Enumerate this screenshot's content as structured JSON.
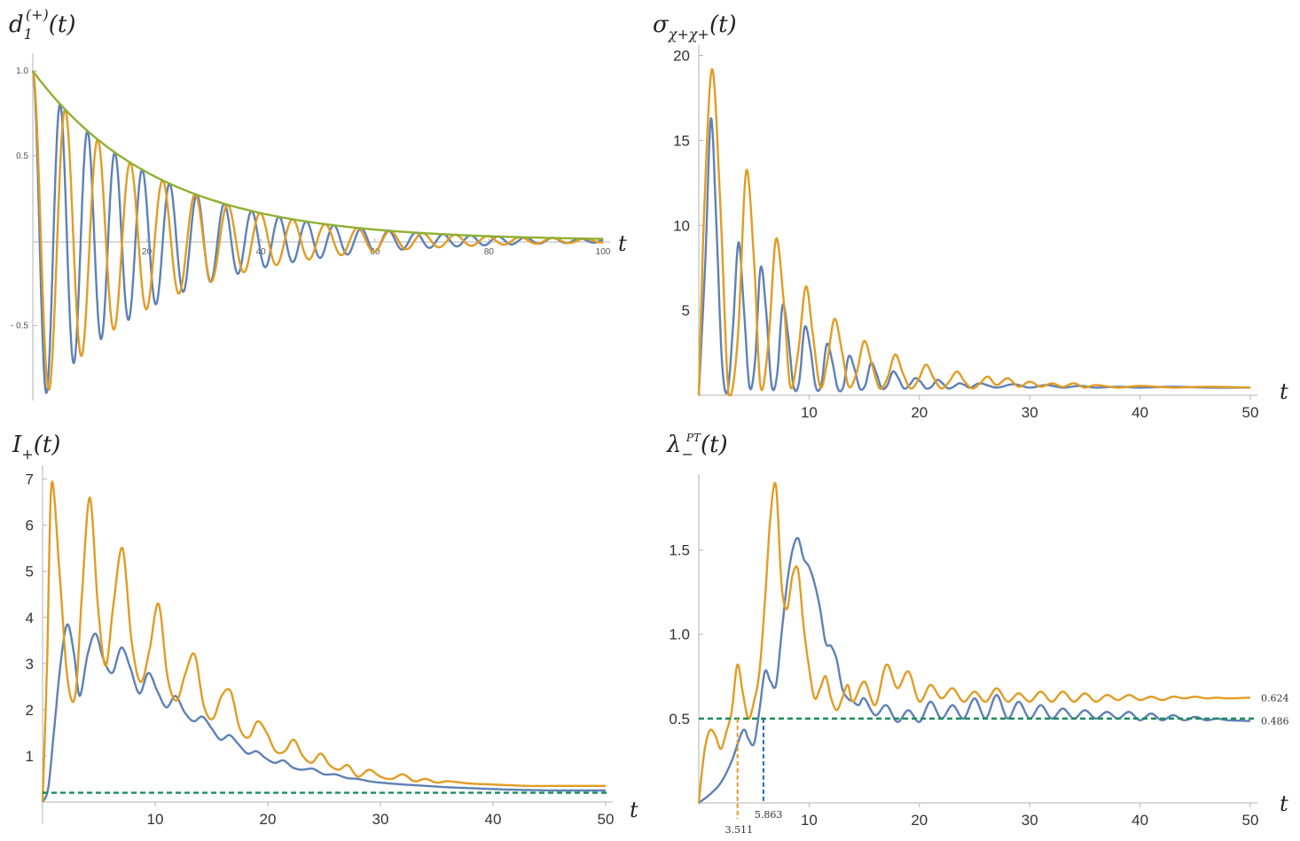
{
  "colors": {
    "blue": "#5e81b5",
    "orange": "#e19c24",
    "green": "#8fb032",
    "dashed": "#1a8c5a",
    "axis": "#b3b3b3"
  },
  "chart_data": [
    {
      "type": "line",
      "title": "d_1^{(+)}(t)",
      "title_parts": {
        "base": "d",
        "sub": "1",
        "sup": "(+)",
        "arg": "(t)"
      },
      "xlabel": "t",
      "ylabel": "",
      "xlim": [
        0,
        100
      ],
      "ylim": [
        -0.9,
        1.0
      ],
      "xticks": [
        20,
        40,
        60,
        80,
        100
      ],
      "xtick_labels": [
        "20",
        "40",
        "60",
        "80",
        "100"
      ],
      "yticks": [
        -0.5,
        0.5,
        1.0
      ],
      "ytick_labels": [
        "- 0.5",
        "0.5",
        "1.0"
      ],
      "series": [
        {
          "color": "blue",
          "kind": "damped_cos",
          "amp": 1.0,
          "decay": 22.0,
          "period": 4.8
        },
        {
          "color": "orange",
          "kind": "damped_cos",
          "amp": 1.0,
          "decay": 22.0,
          "period": 5.7
        },
        {
          "color": "green",
          "kind": "envelope",
          "amp": 1.0,
          "decay": 22.0
        }
      ]
    },
    {
      "type": "line",
      "title": "σ_{χ+χ+}(t)",
      "title_parts": {
        "base": "σ",
        "sub": "χ+χ+",
        "arg": "(t)"
      },
      "xlabel": "t",
      "ylabel": "",
      "xlim": [
        0,
        50
      ],
      "ylim": [
        0,
        20.5
      ],
      "xticks": [
        10,
        20,
        30,
        40,
        50
      ],
      "xtick_labels": [
        "10",
        "20",
        "30",
        "40",
        "50"
      ],
      "yticks": [
        5,
        10,
        15,
        20
      ],
      "ytick_labels": [
        "5",
        "10",
        "15",
        "20"
      ],
      "series": [
        {
          "color": "blue",
          "x": [
            0,
            0.6,
            1.1,
            1.6,
            2.1,
            2.6,
            3.1,
            3.6,
            4.1,
            4.6,
            5.1,
            5.6,
            6.1,
            6.6,
            7.1,
            7.6,
            8.1,
            8.6,
            9.1,
            9.6,
            10.1,
            10.6,
            11.1,
            11.6,
            12.1,
            12.6,
            13.1,
            13.6,
            14.1,
            14.6,
            15.1,
            15.6,
            16.1,
            16.6,
            17.1,
            17.6,
            18.1,
            18.6,
            19.1,
            19.6,
            20.1,
            20.6,
            21.1,
            21.6,
            22.1,
            22.6,
            23.1,
            23.6,
            24.1,
            24.6,
            25.5,
            27,
            28.5,
            30,
            31.5,
            33,
            34.5,
            36,
            38,
            40,
            43,
            46,
            50
          ],
          "y": [
            0,
            8,
            16.3,
            10,
            2,
            0.2,
            4,
            9,
            5,
            0.5,
            2,
            7.5,
            5,
            0.6,
            1.2,
            5.3,
            3.5,
            0.5,
            0.8,
            4.0,
            2.8,
            0.5,
            0.6,
            3.0,
            2.0,
            0.4,
            0.5,
            2.3,
            1.6,
            0.4,
            0.6,
            1.9,
            1.3,
            0.4,
            0.6,
            1.4,
            1.0,
            0.4,
            0.6,
            1.0,
            0.8,
            0.4,
            0.5,
            0.9,
            0.7,
            0.4,
            0.5,
            0.7,
            0.6,
            0.45,
            0.7,
            0.45,
            0.65,
            0.45,
            0.6,
            0.45,
            0.55,
            0.45,
            0.5,
            0.45,
            0.5,
            0.45,
            0.45
          ]
        },
        {
          "color": "orange",
          "x": [
            0,
            0.5,
            1.2,
            1.9,
            2.6,
            3.0,
            3.6,
            4.3,
            5.0,
            5.6,
            6.3,
            7.0,
            7.7,
            8.3,
            9.0,
            9.7,
            10.3,
            11.0,
            11.6,
            12.3,
            13.0,
            13.6,
            14.3,
            15.0,
            15.7,
            16.4,
            17.1,
            17.8,
            18.5,
            19.2,
            19.9,
            20.6,
            21.3,
            22.0,
            22.7,
            23.4,
            24.1,
            24.8,
            25.5,
            26.2,
            27,
            28,
            29,
            30,
            31,
            32,
            33,
            34,
            35,
            36,
            38,
            40,
            43,
            46,
            50
          ],
          "y": [
            0,
            11,
            19.2,
            12,
            1,
            0.2,
            4,
            13.2,
            8,
            0.5,
            3,
            9.2,
            5.5,
            0.5,
            2.5,
            6.4,
            3.8,
            0.5,
            1.8,
            4.5,
            2.5,
            0.5,
            1.3,
            3.2,
            1.8,
            0.4,
            1.0,
            2.4,
            1.3,
            0.4,
            0.9,
            1.8,
            1.0,
            0.4,
            0.8,
            1.4,
            0.8,
            0.4,
            0.7,
            1.1,
            0.6,
            1.0,
            0.5,
            0.8,
            0.5,
            0.7,
            0.5,
            0.7,
            0.45,
            0.6,
            0.45,
            0.55,
            0.45,
            0.5,
            0.45
          ]
        }
      ]
    },
    {
      "type": "line",
      "title": "I_+(t)",
      "title_parts": {
        "base": "I",
        "sub": "+",
        "arg": "(t)"
      },
      "xlabel": "t",
      "ylabel": "",
      "xlim": [
        0,
        50
      ],
      "ylim": [
        0,
        7.3
      ],
      "xticks": [
        10,
        20,
        30,
        40,
        50
      ],
      "xtick_labels": [
        "10",
        "20",
        "30",
        "40",
        "50"
      ],
      "yticks": [
        1,
        2,
        3,
        4,
        5,
        6,
        7
      ],
      "ytick_labels": [
        "1",
        "2",
        "3",
        "4",
        "5",
        "6",
        "7"
      ],
      "series": [
        {
          "color": "blue",
          "x": [
            0,
            0.5,
            1.0,
            1.6,
            2.2,
            2.8,
            3.3,
            4.0,
            4.7,
            5.4,
            6.2,
            7.0,
            7.8,
            8.6,
            9.4,
            10.2,
            11.0,
            11.8,
            12.6,
            13.4,
            14.2,
            15.0,
            15.8,
            16.6,
            17.4,
            18.2,
            19.0,
            19.8,
            20.6,
            21.4,
            22.2,
            23,
            24,
            25,
            26,
            27,
            28,
            29,
            30,
            32,
            34,
            36,
            38,
            40,
            43,
            46,
            50
          ],
          "y": [
            0,
            0.3,
            1.5,
            3.0,
            3.85,
            3.2,
            2.3,
            3.2,
            3.65,
            3.1,
            2.8,
            3.35,
            2.9,
            2.35,
            2.8,
            2.4,
            2.05,
            2.3,
            1.95,
            1.75,
            1.85,
            1.6,
            1.35,
            1.45,
            1.25,
            1.05,
            1.1,
            0.95,
            0.85,
            0.9,
            0.75,
            0.7,
            0.72,
            0.6,
            0.6,
            0.52,
            0.5,
            0.45,
            0.42,
            0.38,
            0.35,
            0.32,
            0.3,
            0.28,
            0.26,
            0.25,
            0.25
          ]
        },
        {
          "color": "orange",
          "x": [
            0,
            0.4,
            0.8,
            1.5,
            2.2,
            2.9,
            3.5,
            4.2,
            4.9,
            5.6,
            6.3,
            7.1,
            7.9,
            8.7,
            9.5,
            10.3,
            11.1,
            11.9,
            12.7,
            13.5,
            14.3,
            15.1,
            15.9,
            16.7,
            17.5,
            18.3,
            19.1,
            19.9,
            20.7,
            21.5,
            22.3,
            23.1,
            23.9,
            24.7,
            25.5,
            26.3,
            27.1,
            28,
            29,
            30,
            31,
            32,
            33,
            34,
            35,
            36,
            38,
            40,
            43,
            46,
            50
          ],
          "y": [
            0,
            3,
            6.9,
            5,
            2.7,
            2.3,
            4.5,
            6.6,
            4.3,
            2.95,
            4.3,
            5.5,
            3.5,
            2.6,
            3.3,
            4.3,
            2.7,
            2.2,
            2.8,
            3.2,
            2.1,
            1.8,
            2.3,
            2.4,
            1.6,
            1.4,
            1.75,
            1.5,
            1.1,
            1.1,
            1.35,
            1.0,
            0.85,
            1.05,
            0.8,
            0.7,
            0.8,
            0.55,
            0.7,
            0.55,
            0.5,
            0.6,
            0.45,
            0.5,
            0.42,
            0.45,
            0.4,
            0.38,
            0.35,
            0.35,
            0.35
          ]
        },
        {
          "color": "dashed",
          "kind": "hline",
          "y": 0.2
        }
      ]
    },
    {
      "type": "line",
      "title": "λ_-^{PT}(t)",
      "title_parts": {
        "base": "λ",
        "sub": "−",
        "sup": "PT",
        "arg": "(t)"
      },
      "xlabel": "t",
      "ylabel": "",
      "xlim": [
        0,
        50
      ],
      "ylim": [
        0,
        1.95
      ],
      "xticks": [
        10,
        20,
        30,
        40,
        50
      ],
      "xtick_labels": [
        "10",
        "20",
        "30",
        "40",
        "50"
      ],
      "yticks": [
        0.5,
        1.0,
        1.5
      ],
      "ytick_labels": [
        "0.5",
        "1.0",
        "1.5"
      ],
      "series": [
        {
          "color": "blue",
          "x": [
            0,
            1,
            2,
            3,
            4,
            4.5,
            5,
            5.5,
            6,
            6.5,
            7,
            7.5,
            8,
            8.5,
            9,
            9.5,
            10,
            10.5,
            11,
            11.5,
            12,
            12.5,
            13,
            13.5,
            14,
            14.5,
            15,
            16,
            17,
            18,
            19,
            20,
            21,
            22,
            23,
            24,
            25,
            26,
            27,
            28,
            29,
            30,
            31,
            32,
            33,
            34,
            35,
            36,
            37,
            38,
            39,
            40,
            41,
            42,
            43,
            44,
            45,
            46,
            47,
            48,
            50
          ],
          "y": [
            0,
            0.05,
            0.12,
            0.25,
            0.43,
            0.38,
            0.35,
            0.55,
            0.78,
            0.72,
            0.7,
            1.0,
            1.3,
            1.5,
            1.57,
            1.45,
            1.4,
            1.3,
            1.15,
            0.95,
            0.93,
            0.85,
            0.68,
            0.62,
            0.6,
            0.58,
            0.62,
            0.52,
            0.58,
            0.48,
            0.55,
            0.48,
            0.6,
            0.5,
            0.58,
            0.5,
            0.62,
            0.5,
            0.64,
            0.5,
            0.6,
            0.5,
            0.58,
            0.5,
            0.56,
            0.5,
            0.55,
            0.5,
            0.54,
            0.5,
            0.54,
            0.49,
            0.53,
            0.49,
            0.52,
            0.49,
            0.51,
            0.49,
            0.5,
            0.49,
            0.486
          ]
        },
        {
          "color": "orange",
          "x": [
            0,
            0.5,
            1,
            1.5,
            2,
            2.5,
            3,
            3.5,
            4,
            4.5,
            5,
            5.5,
            6,
            6.5,
            7,
            7.5,
            8,
            8.5,
            9,
            9.5,
            10,
            10.5,
            11,
            11.5,
            12,
            12.5,
            13,
            13.5,
            14,
            15,
            16,
            17,
            18,
            19,
            20,
            21,
            22,
            23,
            24,
            25,
            26,
            27,
            28,
            29,
            30,
            31,
            32,
            33,
            34,
            35,
            36,
            37,
            38,
            39,
            40,
            41,
            42,
            43,
            44,
            45,
            46,
            47,
            48,
            50
          ],
          "y": [
            0,
            0.3,
            0.43,
            0.4,
            0.32,
            0.42,
            0.55,
            0.82,
            0.65,
            0.5,
            0.6,
            0.78,
            1.2,
            1.7,
            1.88,
            1.3,
            1.15,
            1.35,
            1.38,
            1.05,
            0.8,
            0.62,
            0.68,
            0.75,
            0.62,
            0.55,
            0.62,
            0.7,
            0.6,
            0.72,
            0.58,
            0.82,
            0.68,
            0.78,
            0.6,
            0.7,
            0.62,
            0.68,
            0.6,
            0.66,
            0.6,
            0.68,
            0.6,
            0.65,
            0.6,
            0.66,
            0.6,
            0.66,
            0.6,
            0.65,
            0.6,
            0.64,
            0.61,
            0.64,
            0.61,
            0.63,
            0.61,
            0.63,
            0.62,
            0.63,
            0.62,
            0.624,
            0.62,
            0.624
          ]
        },
        {
          "color": "dashed",
          "kind": "hline",
          "y": 0.5
        }
      ],
      "annotations": [
        {
          "label": "0.624",
          "y": 0.624,
          "color": "orange"
        },
        {
          "label": "0.486",
          "y": 0.486,
          "color": "blue"
        },
        {
          "label": "3.511",
          "x": 3.511,
          "color": "orange"
        },
        {
          "label": "5.863",
          "x": 5.863,
          "color": "blue"
        }
      ]
    }
  ]
}
